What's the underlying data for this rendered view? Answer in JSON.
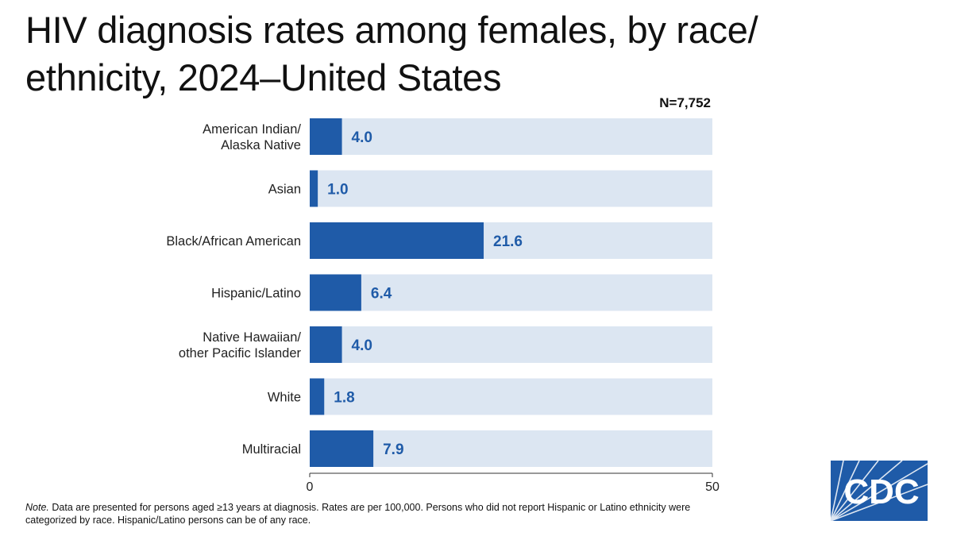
{
  "title": "HIV diagnosis rates among females, by race/ ethnicity, 2024–United States",
  "n_label": "N=7,752",
  "note": {
    "lead": "Note.",
    "text": " Data are presented for persons aged ≥13 years at diagnosis. Rates are per 100,000. Persons who did not report Hispanic or Latino ethnicity were categorized by race. Hispanic/Latino persons can be of any race."
  },
  "logo": {
    "text": "CDC",
    "icon": "cdc-logo"
  },
  "colors": {
    "bar": "#1f5ba8",
    "track": "#dce6f2",
    "value_text": "#1f5ba8",
    "logo": "#1f5ba8"
  },
  "chart_data": {
    "type": "bar",
    "orientation": "horizontal",
    "categories": [
      [
        "American Indian/",
        "Alaska Native"
      ],
      [
        "Asian"
      ],
      [
        "Black/African American"
      ],
      [
        "Hispanic/Latino"
      ],
      [
        "Native Hawaiian/",
        "other Pacific Islander"
      ],
      [
        "White"
      ],
      [
        "Multiracial"
      ]
    ],
    "values": [
      4.0,
      1.0,
      21.6,
      6.4,
      4.0,
      1.8,
      7.9
    ],
    "value_labels": [
      "4.0",
      "1.0",
      "21.6",
      "6.4",
      "4.0",
      "1.8",
      "7.9"
    ],
    "xlim": [
      0,
      50
    ],
    "xticks": [
      "0",
      "50"
    ],
    "grid": false,
    "legend": "none"
  }
}
